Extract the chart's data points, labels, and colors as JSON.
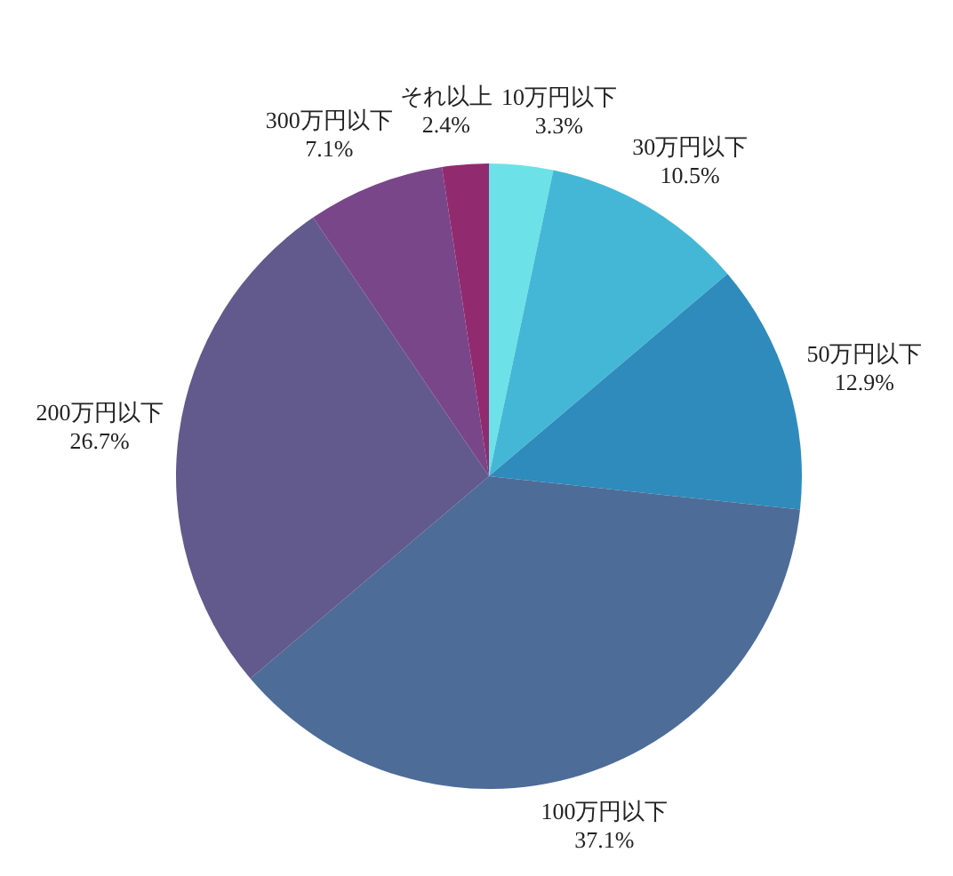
{
  "chart_data": {
    "type": "pie",
    "categories": [
      "10万円以下",
      "30万円以下",
      "50万円以下",
      "100万円以下",
      "200万円以下",
      "300万円以下",
      "それ以上"
    ],
    "values": [
      3.3,
      10.5,
      12.9,
      37.1,
      26.7,
      7.1,
      2.4
    ],
    "value_labels": [
      "3.3%",
      "10.5%",
      "12.9%",
      "37.1%",
      "26.7%",
      "7.1%",
      "2.4%"
    ],
    "colors": [
      "#6ce2e8",
      "#45b7d6",
      "#2e8bbb",
      "#4d6c98",
      "#62598c",
      "#7a468a",
      "#922a6f"
    ]
  }
}
